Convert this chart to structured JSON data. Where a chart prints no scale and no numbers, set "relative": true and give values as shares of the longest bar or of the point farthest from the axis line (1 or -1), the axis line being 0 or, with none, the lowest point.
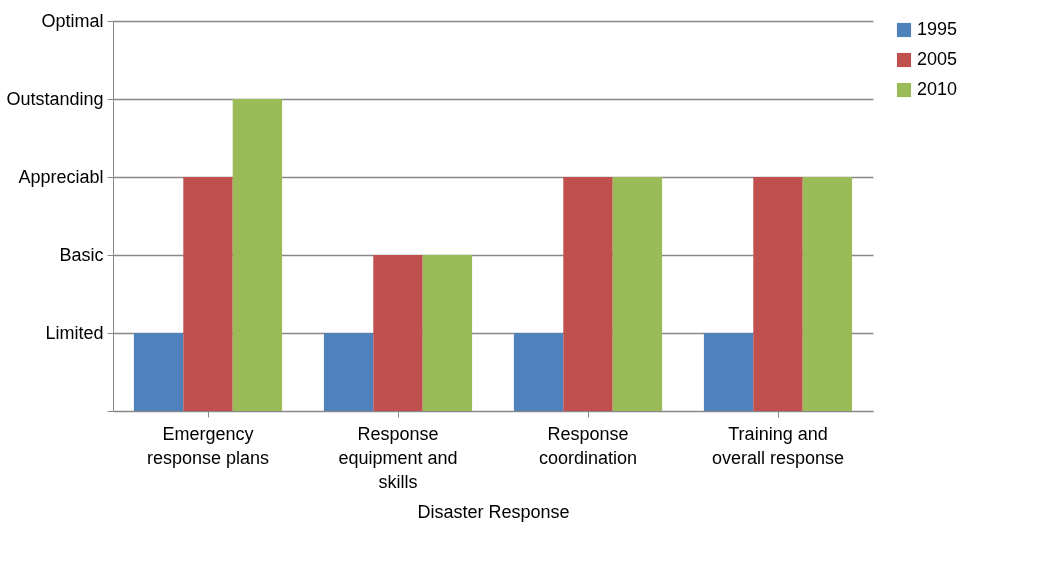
{
  "chart_data": {
    "type": "bar",
    "xlabel": "Disaster Response",
    "categories": [
      "Emergency response plans",
      "Response equipment and skills",
      "Response coordination",
      "Training and overall response"
    ],
    "series": [
      {
        "name": "1995",
        "color": "#4f81bd",
        "values": [
          0.25,
          0.25,
          0.25,
          0.25
        ]
      },
      {
        "name": "2005",
        "color": "#c0504d",
        "values": [
          0.75,
          0.5,
          0.75,
          0.75
        ]
      },
      {
        "name": "2010",
        "color": "#9bbb59",
        "values": [
          1,
          0.5,
          0.75,
          0.75
        ]
      }
    ],
    "relative": true,
    "annotations": [
      "Limited",
      "Basic",
      "Appreciabl",
      "Outstanding",
      "Optimal"
    ],
    "grid": "y",
    "legend": "right"
  }
}
